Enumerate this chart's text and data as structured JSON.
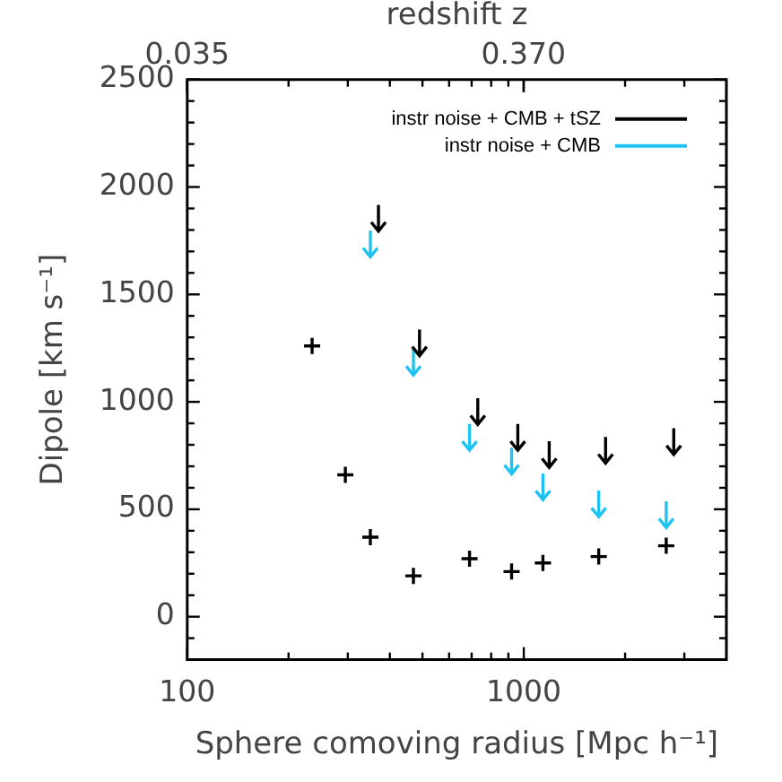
{
  "chart_data": {
    "type": "scatter",
    "xlabel": "Sphere comoving radius [Mpc h⁻¹]",
    "ylabel": "Dipole [km s⁻¹]",
    "x2label": "redshift z",
    "log": "x",
    "grid": false,
    "legend": "top right",
    "xlim": [
      100,
      4000
    ],
    "xticks": [
      100,
      {
        "value": 200,
        "label": null
      },
      {
        "value": 300,
        "label": null
      },
      {
        "value": 400,
        "label": null
      },
      {
        "value": 500,
        "label": null
      },
      {
        "value": 600,
        "label": null
      },
      {
        "value": 700,
        "label": null
      },
      {
        "value": 800,
        "label": null
      },
      {
        "value": 900,
        "label": null
      },
      1000,
      {
        "value": 2000,
        "label": null
      },
      {
        "value": 3000,
        "label": null
      }
    ],
    "x2lim": [
      0.035,
      0.572
    ],
    "x2ticks": [
      0.035,
      {
        "value": 0.37,
        "label": "0.370"
      }
    ],
    "ylim": [
      -200,
      2500
    ],
    "yticks": [
      {
        "value": -100,
        "label": null
      },
      0,
      {
        "value": 100,
        "label": null
      },
      {
        "value": 200,
        "label": null
      },
      {
        "value": 300,
        "label": null
      },
      {
        "value": 400,
        "label": null
      },
      500,
      {
        "value": 600,
        "label": null
      },
      {
        "value": 700,
        "label": null
      },
      {
        "value": 800,
        "label": null
      },
      {
        "value": 900,
        "label": null
      },
      1000,
      {
        "value": 1100,
        "label": null
      },
      {
        "value": 1200,
        "label": null
      },
      {
        "value": 1300,
        "label": null
      },
      {
        "value": 1400,
        "label": null
      },
      1500,
      {
        "value": 1600,
        "label": null
      },
      {
        "value": 1700,
        "label": null
      },
      {
        "value": 1800,
        "label": null
      },
      {
        "value": 1900,
        "label": null
      },
      2000,
      {
        "value": 2100,
        "label": null
      },
      {
        "value": 2200,
        "label": null
      },
      {
        "value": 2300,
        "label": null
      },
      {
        "value": 2400,
        "label": null
      },
      2500
    ],
    "series": [
      {
        "color": "#000000",
        "marker": "cross",
        "x": [
          235,
          295,
          350,
          470,
          690,
          920,
          1140,
          1670,
          2650
        ],
        "values": [
          1260,
          660,
          370,
          190,
          270,
          210,
          250,
          280,
          330
        ]
      },
      {
        "name": "instr noise + CMB + tSZ",
        "color": "#000000",
        "x": [
          370,
          490,
          730,
          960,
          1190,
          1750,
          2790
        ],
        "values": [
          1850,
          1270,
          950,
          830,
          750,
          770,
          810
        ]
      },
      {
        "name": "instr noise + CMB",
        "color": "#1fc3f3",
        "x": [
          350,
          470,
          690,
          920,
          1140,
          1670,
          2650
        ],
        "values": [
          1730,
          1180,
          830,
          720,
          600,
          520,
          470
        ]
      }
    ]
  }
}
